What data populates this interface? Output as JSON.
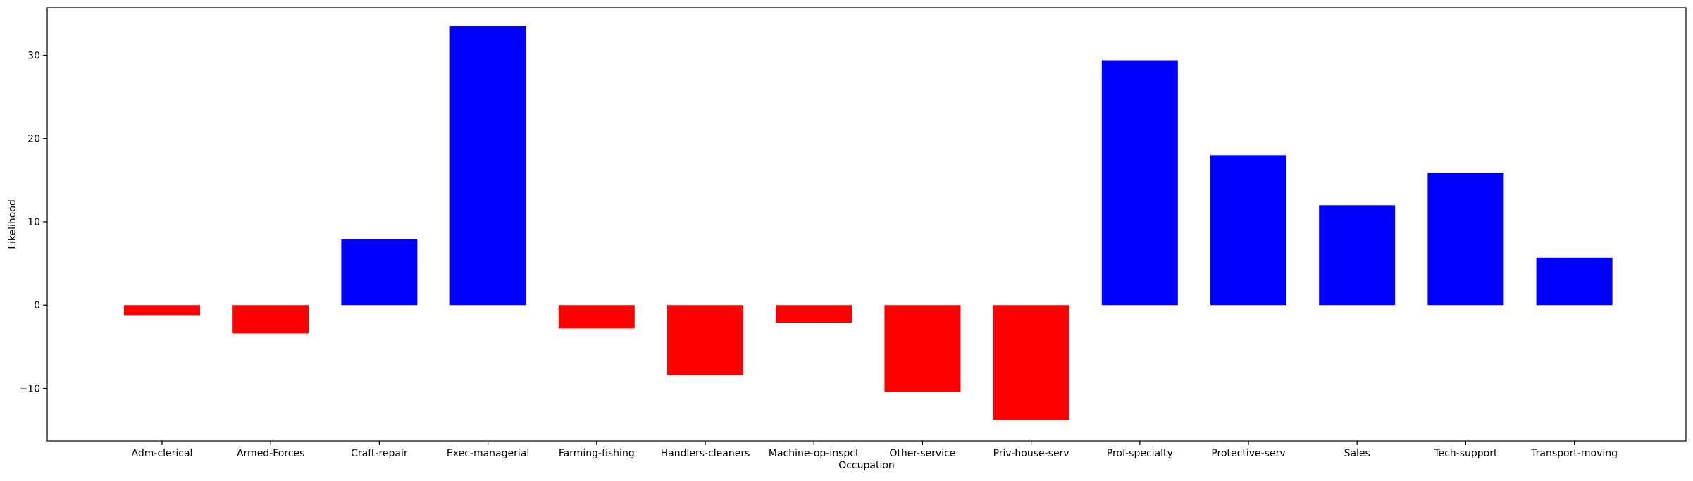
{
  "chart_data": {
    "type": "bar",
    "title": "",
    "xlabel": "Occupation",
    "ylabel": "Likelihood",
    "categories": [
      "Adm-clerical",
      "Armed-Forces",
      "Craft-repair",
      "Exec-managerial",
      "Farming-fishing",
      "Handlers-cleaners",
      "Machine-op-inspct",
      "Other-service",
      "Priv-house-serv",
      "Prof-specialty",
      "Protective-serv",
      "Sales",
      "Tech-support",
      "Transport-moving"
    ],
    "values": [
      -1.2,
      -3.4,
      7.9,
      33.5,
      -2.8,
      -8.4,
      -2.1,
      -10.4,
      -13.8,
      29.4,
      18.0,
      12.0,
      15.9,
      5.7
    ],
    "ylim": [
      -16.3,
      35.7
    ],
    "yticks": [
      -10,
      0,
      10,
      20,
      30
    ],
    "grid": false,
    "legend": false,
    "colors": {
      "positive": "#0000ff",
      "negative": "#ff0000",
      "axis": "#000000"
    }
  }
}
